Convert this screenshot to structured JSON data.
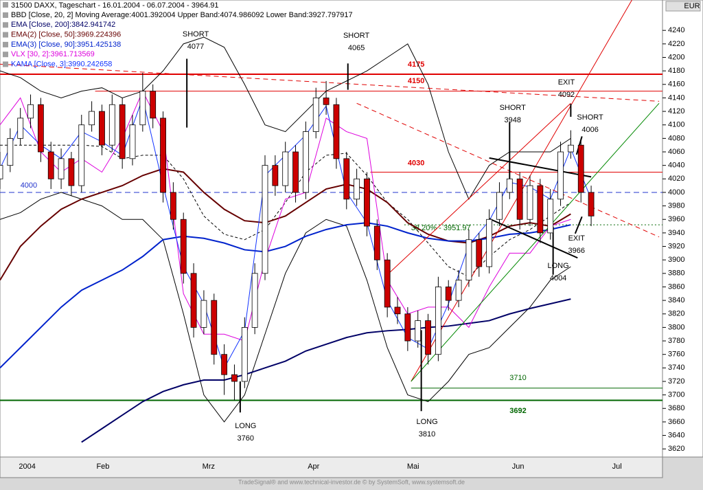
{
  "chart_data": {
    "type": "candlestick",
    "title": "31500  DAXX, Tageschart - 16.01.2004 - 06.07.2004 - 3964.91",
    "currency": "EUR",
    "footer": "TradeSignal® and www.technical-investor.de © by SystemSoft, www.systemsoft.de",
    "xlim": [
      0,
      195
    ],
    "ylim": [
      3608,
      4285
    ],
    "xticks": [
      {
        "value": 8,
        "label": "2004"
      },
      {
        "value": 30.3,
        "label": "Feb"
      },
      {
        "value": 61.4,
        "label": "Mrz"
      },
      {
        "value": 92.3,
        "label": "Apr"
      },
      {
        "value": 121.6,
        "label": "Mai"
      },
      {
        "value": 152.5,
        "label": "Jun"
      },
      {
        "value": 181.6,
        "label": "Jul"
      }
    ],
    "yticks": [
      3620,
      3640,
      3660,
      3680,
      3700,
      3720,
      3740,
      3760,
      3780,
      3800,
      3820,
      3840,
      3860,
      3880,
      3900,
      3920,
      3940,
      3960,
      3980,
      4000,
      4020,
      4040,
      4060,
      4080,
      4100,
      4120,
      4140,
      4160,
      4180,
      4200,
      4220,
      4240
    ],
    "candles": {
      "x": [
        0,
        3,
        6,
        9,
        12,
        15,
        18,
        21,
        24,
        27,
        30,
        33,
        36,
        39,
        42,
        45,
        48,
        51,
        54,
        57,
        60,
        63,
        66,
        69,
        72,
        75,
        78,
        81,
        84,
        87,
        90,
        93,
        96,
        99,
        102,
        105,
        108,
        111,
        114,
        117,
        120,
        123,
        126,
        129,
        132,
        135,
        138,
        141,
        144,
        147,
        150,
        153,
        156,
        159,
        162,
        165,
        168,
        171,
        174
      ],
      "ohlc": [
        [
          4020,
          4060,
          4005,
          4040
        ],
        [
          4040,
          4095,
          4030,
          4080
        ],
        [
          4080,
          4125,
          4070,
          4110
        ],
        [
          4110,
          4145,
          4095,
          4130
        ],
        [
          4130,
          4140,
          4045,
          4060
        ],
        [
          4060,
          4075,
          4005,
          4020
        ],
        [
          4020,
          4065,
          4005,
          4050
        ],
        [
          4050,
          4060,
          3995,
          4010
        ],
        [
          4010,
          4115,
          4000,
          4100
        ],
        [
          4100,
          4135,
          4090,
          4120
        ],
        [
          4120,
          4130,
          4055,
          4070
        ],
        [
          4070,
          4145,
          4060,
          4130
        ],
        [
          4130,
          4140,
          4035,
          4050
        ],
        [
          4050,
          4115,
          4040,
          4100
        ],
        [
          4100,
          4177,
          4090,
          4150
        ],
        [
          4150,
          4160,
          4095,
          4110
        ],
        [
          4110,
          4120,
          3985,
          4000
        ],
        [
          4000,
          4015,
          3945,
          3960
        ],
        [
          3960,
          3970,
          3865,
          3880
        ],
        [
          3880,
          3895,
          3785,
          3800
        ],
        [
          3800,
          3855,
          3790,
          3840
        ],
        [
          3840,
          3850,
          3745,
          3760
        ],
        [
          3760,
          3775,
          3700,
          3730
        ],
        [
          3730,
          3745,
          3692,
          3720
        ],
        [
          3720,
          3815,
          3710,
          3800
        ],
        [
          3800,
          3895,
          3790,
          3880
        ],
        [
          3880,
          4055,
          3870,
          4040
        ],
        [
          4040,
          4055,
          3995,
          4010
        ],
        [
          4010,
          4075,
          4000,
          4060
        ],
        [
          4060,
          4070,
          3985,
          4000
        ],
        [
          4000,
          4105,
          3990,
          4090
        ],
        [
          4090,
          4155,
          4080,
          4140
        ],
        [
          4140,
          4165,
          4115,
          4130
        ],
        [
          4130,
          4140,
          4035,
          4050
        ],
        [
          4050,
          4060,
          3975,
          3990
        ],
        [
          3990,
          4035,
          3980,
          4020
        ],
        [
          4020,
          4030,
          3935,
          3950
        ],
        [
          3950,
          3960,
          3885,
          3900
        ],
        [
          3900,
          3910,
          3815,
          3830
        ],
        [
          3830,
          3845,
          3805,
          3820
        ],
        [
          3820,
          3830,
          3765,
          3780
        ],
        [
          3780,
          3825,
          3770,
          3810
        ],
        [
          3810,
          3820,
          3745,
          3760
        ],
        [
          3760,
          3875,
          3750,
          3860
        ],
        [
          3860,
          3870,
          3825,
          3840
        ],
        [
          3840,
          3885,
          3830,
          3870
        ],
        [
          3870,
          3945,
          3860,
          3930
        ],
        [
          3930,
          3940,
          3875,
          3890
        ],
        [
          3890,
          3975,
          3880,
          3960
        ],
        [
          3960,
          4015,
          3950,
          4000
        ],
        [
          4000,
          4035,
          3990,
          4020
        ],
        [
          4020,
          4030,
          3945,
          3960
        ],
        [
          3960,
          4025,
          3950,
          4010
        ],
        [
          4010,
          4020,
          3925,
          3940
        ],
        [
          3940,
          4005,
          3930,
          3990
        ],
        [
          3990,
          4075,
          3980,
          4060
        ],
        [
          4060,
          4092,
          4050,
          4070
        ],
        [
          4070,
          4080,
          3985,
          4000
        ],
        [
          4000,
          4010,
          3950,
          3965
        ]
      ],
      "up_color": "#ffffff",
      "down_color": "#cc0000"
    },
    "x": [
      0,
      6,
      12,
      18,
      24,
      30,
      36,
      42,
      48,
      54,
      60,
      66,
      72,
      78,
      84,
      90,
      96,
      102,
      108,
      114,
      120,
      126,
      132,
      138,
      144,
      150,
      156,
      162,
      168,
      174
    ],
    "indicators": [
      {
        "name": "BBD [Close, 20, 2] Moving Average:4001.392004 Upper Band:4074.986092 Lower Band:3927.797917",
        "color": "#000000",
        "width": 1,
        "dashed": true,
        "values": [
          4070,
          4070,
          4070,
          4070,
          4070,
          4068,
          4050,
          4055,
          4055,
          4020,
          3965,
          3938,
          3930,
          3945,
          3985,
          4030,
          4055,
          4058,
          4025,
          3985,
          3960,
          3925,
          3890,
          3875,
          3905,
          3930,
          3945,
          3965,
          3985,
          null
        ],
        "upper": [
          4180,
          4170,
          4150,
          4140,
          4150,
          4155,
          4140,
          4150,
          4180,
          4220,
          4230,
          4215,
          4160,
          4100,
          4090,
          4120,
          4150,
          4165,
          4180,
          4200,
          4220,
          4160,
          4060,
          3990,
          4040,
          4060,
          4060,
          4060,
          4080,
          null
        ],
        "lower": [
          3960,
          3970,
          3990,
          4000,
          3990,
          3980,
          3960,
          3960,
          3930,
          3820,
          3700,
          3660,
          3700,
          3790,
          3880,
          3940,
          3960,
          3950,
          3870,
          3770,
          3700,
          3690,
          3720,
          3760,
          3770,
          3800,
          3830,
          3870,
          3890,
          null
        ]
      },
      {
        "name": "EMA [Close, 200]:3842.941742",
        "color": "#000066",
        "width": 2,
        "values": [
          null,
          null,
          null,
          null,
          3630,
          3650,
          3670,
          3690,
          3705,
          3715,
          3722,
          3722,
          3730,
          3740,
          3750,
          3765,
          3775,
          3785,
          3792,
          3795,
          3797,
          3800,
          3802,
          3806,
          3810,
          3820,
          3828,
          3835,
          3842,
          null
        ]
      },
      {
        "name": "EMA(2) [Close, 50]:3969.224396",
        "color": "#660000",
        "width": 2,
        "values": [
          3870,
          3920,
          3950,
          3975,
          3990,
          4000,
          4010,
          4025,
          4035,
          4030,
          4000,
          3975,
          3958,
          3955,
          3965,
          3985,
          4005,
          4012,
          4005,
          3985,
          3955,
          3938,
          3928,
          3925,
          3935,
          3950,
          3955,
          3950,
          3968,
          null
        ]
      },
      {
        "name": "EMA(3) [Close, 90]:3951.425138",
        "color": "#0022cc",
        "width": 2,
        "values": [
          3740,
          3770,
          3800,
          3830,
          3855,
          3870,
          3885,
          3905,
          3930,
          3935,
          3932,
          3925,
          3915,
          3912,
          3920,
          3935,
          3945,
          3952,
          3955,
          3950,
          3940,
          3932,
          3928,
          3928,
          3932,
          3938,
          3940,
          3945,
          3952,
          null
        ]
      },
      {
        "name": "VLX [30, 2]:3961.713569",
        "color": "#dd00dd",
        "width": 1,
        "values": [
          4100,
          4140,
          4060,
          4030,
          4050,
          4030,
          4080,
          4150,
          4090,
          3850,
          3790,
          3790,
          3780,
          3900,
          3990,
          4000,
          4110,
          4090,
          4080,
          3870,
          3820,
          3830,
          3830,
          3800,
          3860,
          3910,
          3910,
          3950,
          3960,
          null
        ]
      },
      {
        "name": "KAMA [Close, 3]:3990.242658",
        "color": "#1133ff",
        "width": 1,
        "values": [
          4035,
          4100,
          4070,
          4050,
          4090,
          4075,
          4055,
          4140,
          4010,
          3890,
          3835,
          3740,
          3795,
          4025,
          4055,
          4085,
          4128,
          4000,
          3955,
          3840,
          3785,
          3768,
          3835,
          3922,
          3958,
          4015,
          4008,
          3990,
          4065,
          3990
        ]
      }
    ],
    "levels": [
      {
        "value": 4175,
        "label": "4175",
        "color": "#e00000",
        "width": 2,
        "start": 0,
        "label_x": 120,
        "label_y": 4189
      },
      {
        "value": 4150,
        "label": "4150",
        "color": "#e00000",
        "width": 1,
        "start": 28,
        "label_x": 120,
        "label_y": 4165
      },
      {
        "value": 4030,
        "label": "4030",
        "color": "#e00000",
        "width": 1,
        "start": 109,
        "label_x": 120,
        "label_y": 4043
      },
      {
        "value": 4000,
        "label": "4000",
        "color": "#2233cc",
        "width": 1,
        "start": 0,
        "label_x": 6,
        "label_y": 4010,
        "dashed": true
      },
      {
        "value": 3951.97,
        "label": "38.20% - 3951.97",
        "color": "#006600",
        "width": 1,
        "start": 119,
        "label_x": 121,
        "label_y": 3947,
        "dotted": true
      },
      {
        "value": 3710,
        "label": "3710",
        "color": "#006600",
        "width": 1,
        "start": 121,
        "label_x": 150,
        "label_y": 3725
      },
      {
        "value": 3692,
        "label": "3692",
        "color": "#006600",
        "width": 2,
        "start": 0,
        "label_x": 150,
        "label_y": 3676
      }
    ],
    "trendlines": [
      {
        "color": "#e00000",
        "dashed": true,
        "points": [
          [
            0,
            4190
          ],
          [
            194,
            4135
          ]
        ]
      },
      {
        "color": "#e00000",
        "dashed": true,
        "points": [
          [
            105,
            4132
          ],
          [
            194,
            3934
          ]
        ]
      },
      {
        "color": "#e00000",
        "points": [
          [
            121,
            3720
          ],
          [
            186,
            4285
          ]
        ]
      },
      {
        "color": "#e00000",
        "points": [
          [
            114,
            3878
          ],
          [
            168,
            4132
          ]
        ]
      },
      {
        "color": "#008800",
        "points": [
          [
            121,
            3720
          ],
          [
            194,
            4132
          ]
        ]
      },
      {
        "color": "#000000",
        "width": 2,
        "points": [
          [
            144,
            4051
          ],
          [
            174,
            4023
          ]
        ]
      },
      {
        "color": "#000000",
        "width": 2,
        "points": [
          [
            144,
            3961
          ],
          [
            170,
            3903
          ]
        ]
      },
      {
        "color": "#000000",
        "width": 2,
        "points": [
          [
            55,
            4198
          ],
          [
            55,
            4096
          ]
        ]
      },
      {
        "color": "#000000",
        "width": 2,
        "points": [
          [
            102.4,
            4191
          ],
          [
            102.4,
            4152
          ]
        ]
      },
      {
        "color": "#000000",
        "width": 2,
        "points": [
          [
            150,
            4104
          ],
          [
            150,
            4005
          ]
        ]
      },
      {
        "color": "#000000",
        "width": 2,
        "points": [
          [
            70.7,
            3720
          ],
          [
            70.7,
            3674
          ]
        ]
      },
      {
        "color": "#000000",
        "width": 2,
        "points": [
          [
            124,
            3796
          ],
          [
            124,
            3676
          ]
        ]
      },
      {
        "color": "#000000",
        "width": 2,
        "points": [
          [
            162.8,
            3949
          ],
          [
            162.8,
            3878
          ]
        ]
      },
      {
        "color": "#000000",
        "width": 2,
        "points": [
          [
            168,
            4131
          ],
          [
            168,
            4112
          ]
        ]
      },
      {
        "color": "#000000",
        "width": 2,
        "points": [
          [
            171.3,
            4083
          ],
          [
            169.7,
            4056
          ]
        ]
      },
      {
        "color": "#000000",
        "width": 2,
        "points": [
          [
            171.3,
            3964
          ],
          [
            169.3,
            3939
          ]
        ]
      }
    ],
    "annotations": [
      {
        "lines": [
          "SHORT",
          "4077"
        ],
        "x": 57.6,
        "y": 4234
      },
      {
        "lines": [
          "SHORT",
          "4065"
        ],
        "x": 104.9,
        "y": 4232
      },
      {
        "lines": [
          "SHORT",
          "3948"
        ],
        "x": 150.9,
        "y": 4125
      },
      {
        "lines": [
          "SHORT",
          "4006"
        ],
        "x": 173.7,
        "y": 4110.7
      },
      {
        "lines": [
          "EXIT",
          "4092"
        ],
        "x": 166.7,
        "y": 4162.6
      },
      {
        "lines": [
          "EXIT",
          "3966"
        ],
        "x": 169.7,
        "y": 3931.5
      },
      {
        "lines": [
          "LONG",
          "3760"
        ],
        "x": 72.3,
        "y": 3653.6
      },
      {
        "lines": [
          "LONG",
          "3810"
        ],
        "x": 125.7,
        "y": 3659.7
      },
      {
        "lines": [
          "LONG",
          "4004"
        ],
        "x": 164.3,
        "y": 3890.8
      }
    ]
  }
}
